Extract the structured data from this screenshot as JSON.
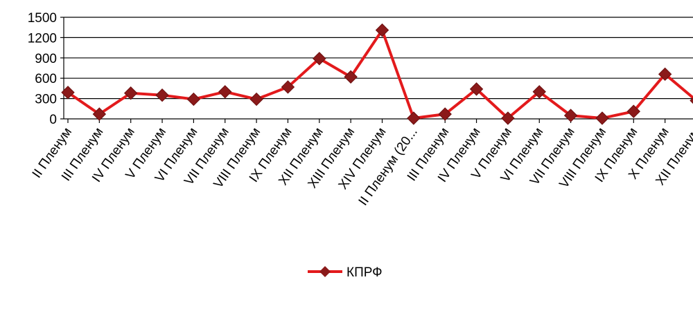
{
  "chart_data": {
    "type": "line",
    "categories": [
      "II Пленум",
      "III Пленум",
      "IV Пленум",
      "V Пленум",
      "VI Пленум",
      "VII Пленум",
      "VIII Пленум",
      "IX Пленум",
      "XII Пленум",
      "XIII Пленум",
      "XIV Пленум",
      "II Пленум (20...",
      "III Пленум",
      "IV Пленум",
      "V Пленум",
      "VI Пленум",
      "VII Пленум",
      "VIII Пленум",
      "IX Пленум",
      "X Пленум",
      "XII Пленум"
    ],
    "series": [
      {
        "name": "КПРФ",
        "values": [
          390,
          70,
          380,
          350,
          290,
          400,
          290,
          470,
          890,
          620,
          1310,
          10,
          70,
          440,
          10,
          400,
          50,
          10,
          110,
          660,
          270
        ]
      }
    ],
    "ylim": [
      0,
      1500
    ],
    "yticks": [
      "0",
      "300",
      "600",
      "900",
      "1200",
      "1500"
    ],
    "grid": true,
    "legend": "bottom",
    "colors": {
      "line": "#e31a1c",
      "marker": "#8b1a1a",
      "grid": "#000000"
    }
  }
}
